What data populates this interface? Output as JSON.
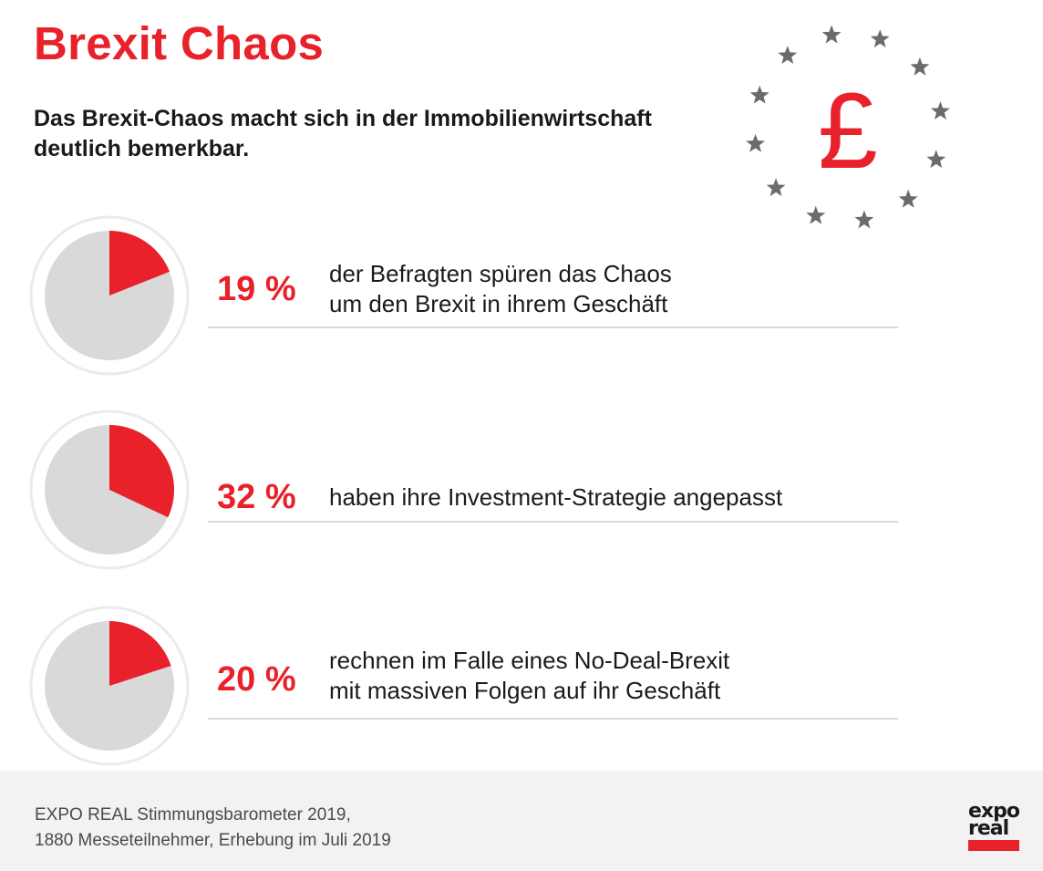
{
  "title": "Brexit Chaos",
  "subtitle": "Das Brexit-Chaos macht sich in der Immobilienwirtschaft deutlich bemerkbar.",
  "emblem": {
    "symbol": "£",
    "icon": "eu-stars-pound-icon",
    "star_count": 12
  },
  "colors": {
    "accent": "#e8212a",
    "pie_base": "#d9d9d9",
    "ring": "#ebebeb",
    "stars": "#6b6b6b"
  },
  "chart_data": {
    "type": "pie",
    "items": [
      {
        "percent_label": "19 %",
        "value": 19,
        "lines": [
          "der Befragten spüren das Chaos",
          "um den Brexit in ihrem Geschäft"
        ]
      },
      {
        "percent_label": "32 %",
        "value": 32,
        "lines": [
          "haben ihre Investment-Strategie angepasst"
        ]
      },
      {
        "percent_label": "20 %",
        "value": 20,
        "lines": [
          "rechnen im Falle eines No-Deal-Brexit",
          "mit massiven Folgen auf ihr Geschäft"
        ]
      }
    ]
  },
  "source": {
    "line1": "EXPO REAL Stimmungsbarometer 2019,",
    "line2": "1880 Messeteilnehmer, Erhebung im Juli 2019"
  },
  "logo": {
    "line1": "expo",
    "line2": "real"
  }
}
